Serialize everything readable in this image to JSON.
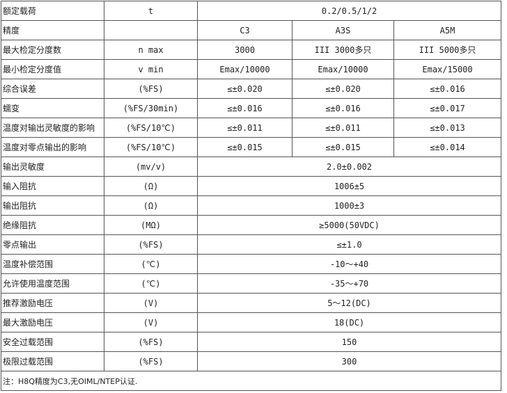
{
  "rows": [
    {
      "label": "额定载荷",
      "unit": "t",
      "values": [
        "0.2/0.5/1/2"
      ]
    },
    {
      "label": "精度",
      "unit": "",
      "values": [
        "C3",
        "A3S",
        "A5M"
      ]
    },
    {
      "label": "最大检定分度数",
      "unit": "n max",
      "values": [
        "3000",
        "III 3000多只",
        "III 5000多只"
      ]
    },
    {
      "label": "最小检定分度值",
      "unit": "v min",
      "values": [
        "Emax/10000",
        "Emax/10000",
        "Emax/15000"
      ]
    },
    {
      "label": "综合误差",
      "unit": "(%FS)",
      "values": [
        "≤±0.020",
        "≤±0.020",
        "≤±0.016"
      ]
    },
    {
      "label": "蠕变",
      "unit": "(%FS/30min)",
      "values": [
        "≤±0.016",
        "≤±0.016",
        "≤±0.017"
      ]
    },
    {
      "label": "温度对输出灵敏度的影响",
      "unit": "(%FS/10℃)",
      "values": [
        "≤±0.011",
        "≤±0.011",
        "≤±0.013"
      ]
    },
    {
      "label": "温度对零点输出的影响",
      "unit": "(%FS/10℃)",
      "values": [
        "≤±0.015",
        "≤±0.015",
        "≤±0.014"
      ]
    },
    {
      "label": "输出灵敏度",
      "unit": "(mv/v)",
      "values": [
        "2.0±0.002"
      ]
    },
    {
      "label": "输入阻抗",
      "unit": "(Ω)",
      "values": [
        "1006±5"
      ]
    },
    {
      "label": "输出阻抗",
      "unit": "(Ω)",
      "values": [
        "1000±3"
      ]
    },
    {
      "label": "绝缘阻抗",
      "unit": "(MΩ)",
      "values": [
        "≥5000(50VDC)"
      ]
    },
    {
      "label": "零点输出",
      "unit": "(%FS)",
      "values": [
        "≤±1.0"
      ]
    },
    {
      "label": "温度补偿范围",
      "unit": "(℃)",
      "values": [
        "-10～+40"
      ]
    },
    {
      "label": "允许使用温度范围",
      "unit": "(℃)",
      "values": [
        "-35～+70"
      ]
    },
    {
      "label": "推荐激励电压",
      "unit": "(V)",
      "values": [
        "5～12(DC)"
      ]
    },
    {
      "label": "最大激励电压",
      "unit": "(V)",
      "values": [
        "18(DC)"
      ]
    },
    {
      "label": "安全过载范围",
      "unit": "(%FS)",
      "values": [
        "150"
      ]
    },
    {
      "label": "极限过载范围",
      "unit": "(%FS)",
      "values": [
        "300"
      ]
    }
  ],
  "note": "注：H8Q精度为C3,无OIML/NTEP认证."
}
